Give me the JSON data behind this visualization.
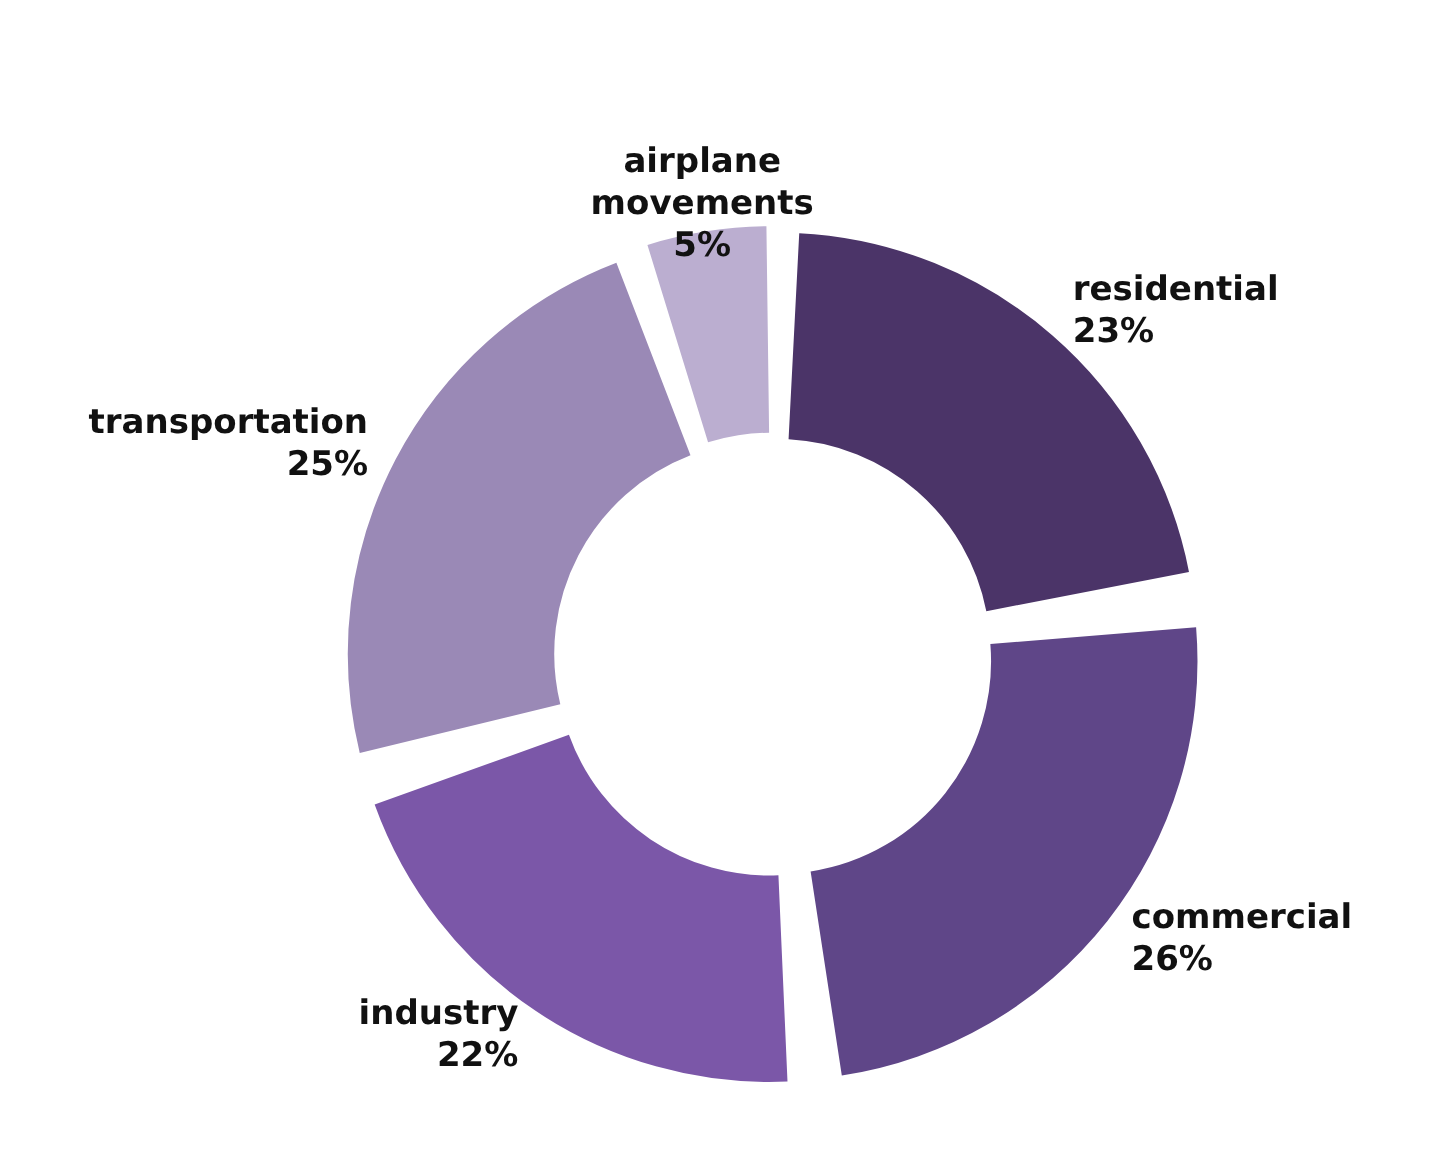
{
  "chart_data": {
    "type": "donut",
    "categories": [
      "residential",
      "commercial",
      "industry",
      "transportation",
      "airplane movements"
    ],
    "values": [
      23,
      26,
      22,
      25,
      5
    ],
    "colors": [
      "#4b3468",
      "#5f4688",
      "#7b57a8",
      "#9a89b6",
      "#bbaed0"
    ],
    "value_labels": [
      "23%",
      "26%",
      "22%",
      "25%",
      "5%"
    ],
    "legend": false
  }
}
